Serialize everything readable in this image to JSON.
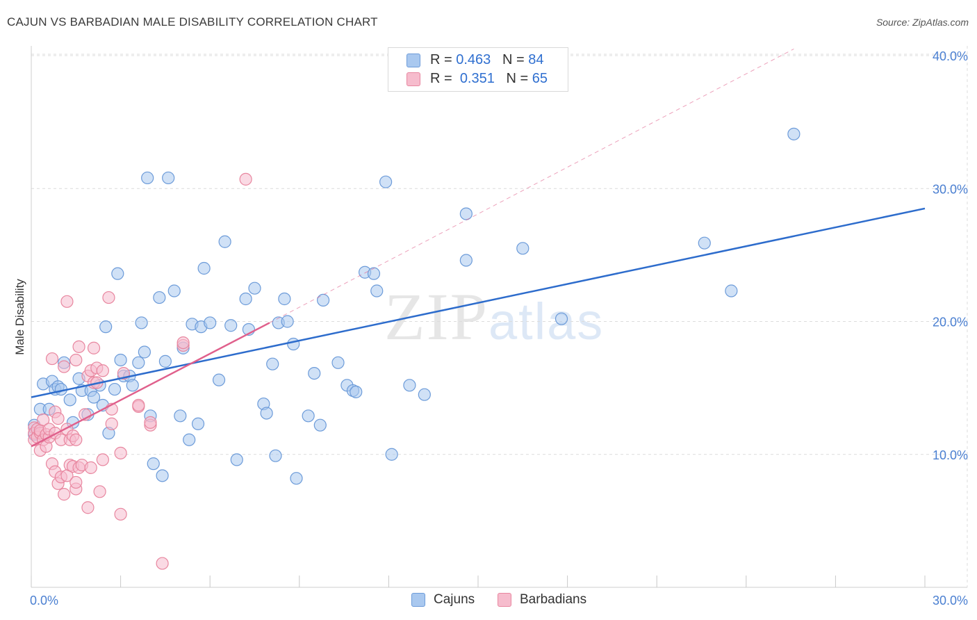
{
  "header": {
    "title": "CAJUN VS BARBADIAN MALE DISABILITY CORRELATION CHART",
    "source": "Source: ZipAtlas.com"
  },
  "watermark": {
    "zip": "ZIP",
    "atlas": "atlas"
  },
  "legend": {
    "r_label": "R =",
    "n_label": "N =",
    "series": [
      {
        "r": "0.463",
        "n": "84"
      },
      {
        "r": "0.351",
        "n": "65"
      }
    ]
  },
  "bottom_legend": {
    "cajuns": "Cajuns",
    "barbadians": "Barbadians"
  },
  "colors": {
    "cajuns_fill": "#a9c8ef",
    "cajuns_stroke": "#6c9bd9",
    "cajuns_line": "#2d6ccc",
    "barbadians_fill": "#f6bccd",
    "barbadians_stroke": "#e8869f",
    "barbadians_line": "#e0608c",
    "grid": "#dcdcdc"
  },
  "chart_data": {
    "type": "scatter",
    "title": "CAJUN VS BARBADIAN MALE DISABILITY CORRELATION CHART",
    "xlabel": "",
    "ylabel": "Male Disability",
    "xlim": [
      0,
      30
    ],
    "ylim": [
      0,
      40
    ],
    "x_ticks": [
      0,
      30
    ],
    "x_tick_labels": [
      "0.0%",
      "30.0%"
    ],
    "y_ticks": [
      10,
      20,
      30,
      40
    ],
    "y_tick_labels": [
      "10.0%",
      "20.0%",
      "30.0%",
      "40.0%"
    ],
    "series": [
      {
        "name": "Cajuns",
        "r": 0.463,
        "n": 84,
        "trend": {
          "x": [
            0,
            30
          ],
          "y": [
            14.3,
            28.5
          ],
          "dashed_extension": false
        },
        "points": [
          [
            0.1,
            12.2
          ],
          [
            0.1,
            11.5
          ],
          [
            0.3,
            13.4
          ],
          [
            0.4,
            15.3
          ],
          [
            0.6,
            13.4
          ],
          [
            0.7,
            15.5
          ],
          [
            0.8,
            14.9
          ],
          [
            0.9,
            15.1
          ],
          [
            1.0,
            14.9
          ],
          [
            1.1,
            16.9
          ],
          [
            1.3,
            14.1
          ],
          [
            1.4,
            12.4
          ],
          [
            1.6,
            15.7
          ],
          [
            1.7,
            14.8
          ],
          [
            1.9,
            13.0
          ],
          [
            2.0,
            14.8
          ],
          [
            2.1,
            14.3
          ],
          [
            2.3,
            15.2
          ],
          [
            2.4,
            13.7
          ],
          [
            2.5,
            19.6
          ],
          [
            2.6,
            11.6
          ],
          [
            2.8,
            14.9
          ],
          [
            2.9,
            23.6
          ],
          [
            3.0,
            17.1
          ],
          [
            3.1,
            15.9
          ],
          [
            3.3,
            15.9
          ],
          [
            3.4,
            15.2
          ],
          [
            3.6,
            16.9
          ],
          [
            3.7,
            19.9
          ],
          [
            3.8,
            17.7
          ],
          [
            3.9,
            30.8
          ],
          [
            4.0,
            12.9
          ],
          [
            4.1,
            9.3
          ],
          [
            4.3,
            21.8
          ],
          [
            4.4,
            8.4
          ],
          [
            4.5,
            17.0
          ],
          [
            4.6,
            30.8
          ],
          [
            4.8,
            22.3
          ],
          [
            5.0,
            12.9
          ],
          [
            5.1,
            18.0
          ],
          [
            5.3,
            11.1
          ],
          [
            5.4,
            19.8
          ],
          [
            5.6,
            12.3
          ],
          [
            5.7,
            19.6
          ],
          [
            5.8,
            24.0
          ],
          [
            6.0,
            19.9
          ],
          [
            6.3,
            15.6
          ],
          [
            6.5,
            26.0
          ],
          [
            6.7,
            19.7
          ],
          [
            6.9,
            9.6
          ],
          [
            7.2,
            21.7
          ],
          [
            7.3,
            19.4
          ],
          [
            7.5,
            22.5
          ],
          [
            7.8,
            13.8
          ],
          [
            7.9,
            13.1
          ],
          [
            8.1,
            16.8
          ],
          [
            8.2,
            9.9
          ],
          [
            8.3,
            19.9
          ],
          [
            8.5,
            21.7
          ],
          [
            8.6,
            20.0
          ],
          [
            8.8,
            18.3
          ],
          [
            8.9,
            8.2
          ],
          [
            9.3,
            12.9
          ],
          [
            9.5,
            16.1
          ],
          [
            9.7,
            12.2
          ],
          [
            9.8,
            21.6
          ],
          [
            10.3,
            16.9
          ],
          [
            10.6,
            15.2
          ],
          [
            10.8,
            14.8
          ],
          [
            10.9,
            14.7
          ],
          [
            11.2,
            23.7
          ],
          [
            11.5,
            23.6
          ],
          [
            11.6,
            22.3
          ],
          [
            11.9,
            30.5
          ],
          [
            12.1,
            10.0
          ],
          [
            12.7,
            15.2
          ],
          [
            13.2,
            14.5
          ],
          [
            14.6,
            28.1
          ],
          [
            14.6,
            24.6
          ],
          [
            16.5,
            25.5
          ],
          [
            17.8,
            20.2
          ],
          [
            22.6,
            25.9
          ],
          [
            23.5,
            22.3
          ],
          [
            25.6,
            34.1
          ]
        ]
      },
      {
        "name": "Barbadians",
        "r": 0.351,
        "n": 65,
        "trend": {
          "x": [
            0,
            8.0
          ],
          "y": [
            10.6,
            19.9
          ],
          "dashed_extension": true,
          "dashed_to": [
            25.6,
            40.5
          ]
        },
        "points": [
          [
            0.1,
            12.0
          ],
          [
            0.1,
            11.6
          ],
          [
            0.1,
            11.1
          ],
          [
            0.2,
            11.9
          ],
          [
            0.2,
            11.3
          ],
          [
            0.3,
            11.6
          ],
          [
            0.3,
            10.3
          ],
          [
            0.3,
            11.8
          ],
          [
            0.4,
            11.1
          ],
          [
            0.4,
            12.6
          ],
          [
            0.5,
            11.5
          ],
          [
            0.5,
            10.6
          ],
          [
            0.6,
            11.3
          ],
          [
            0.6,
            11.9
          ],
          [
            0.7,
            17.2
          ],
          [
            0.7,
            9.3
          ],
          [
            0.8,
            11.6
          ],
          [
            0.8,
            13.2
          ],
          [
            0.8,
            8.7
          ],
          [
            0.9,
            12.7
          ],
          [
            0.9,
            7.8
          ],
          [
            1.0,
            8.3
          ],
          [
            1.0,
            11.1
          ],
          [
            1.1,
            16.6
          ],
          [
            1.1,
            7.0
          ],
          [
            1.2,
            21.5
          ],
          [
            1.2,
            11.9
          ],
          [
            1.2,
            8.4
          ],
          [
            1.3,
            9.2
          ],
          [
            1.3,
            11.1
          ],
          [
            1.4,
            9.1
          ],
          [
            1.4,
            11.4
          ],
          [
            1.5,
            17.1
          ],
          [
            1.5,
            7.4
          ],
          [
            1.5,
            11.1
          ],
          [
            1.5,
            7.9
          ],
          [
            1.6,
            18.1
          ],
          [
            1.6,
            9.0
          ],
          [
            1.7,
            9.2
          ],
          [
            1.8,
            13.0
          ],
          [
            1.9,
            6.0
          ],
          [
            1.9,
            15.9
          ],
          [
            2.0,
            9.0
          ],
          [
            2.0,
            16.3
          ],
          [
            2.1,
            15.4
          ],
          [
            2.1,
            18.0
          ],
          [
            2.2,
            16.5
          ],
          [
            2.2,
            15.4
          ],
          [
            2.3,
            7.2
          ],
          [
            2.4,
            16.3
          ],
          [
            2.4,
            9.6
          ],
          [
            2.6,
            21.8
          ],
          [
            2.7,
            13.4
          ],
          [
            2.7,
            12.3
          ],
          [
            3.0,
            5.5
          ],
          [
            3.0,
            10.1
          ],
          [
            3.1,
            16.1
          ],
          [
            3.6,
            13.6
          ],
          [
            4.0,
            12.2
          ],
          [
            4.0,
            12.4
          ],
          [
            4.4,
            1.8
          ],
          [
            5.1,
            18.2
          ],
          [
            5.1,
            18.4
          ],
          [
            7.2,
            30.7
          ],
          [
            3.6,
            13.7
          ]
        ]
      }
    ]
  }
}
